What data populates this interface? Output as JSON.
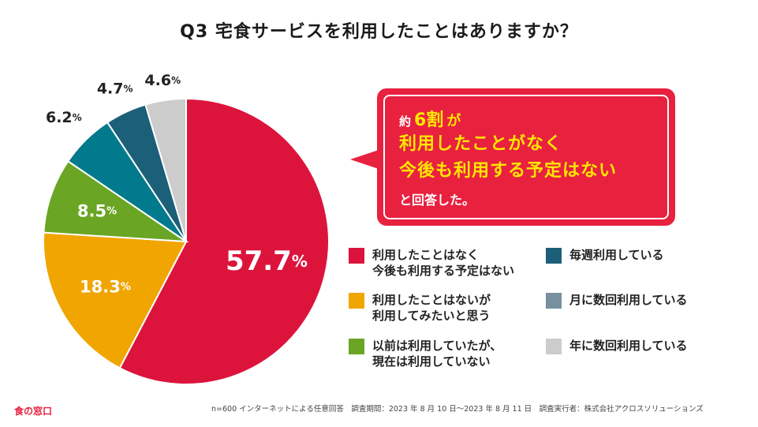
{
  "title": "Q3 宅食サービスを利用したことはありますか？",
  "chart_data": {
    "type": "pie",
    "unit": "%",
    "slices": [
      {
        "label": "利用したことはなく\n今後も利用する予定はない",
        "value": 57.7,
        "color": "#dc143c"
      },
      {
        "label": "利用したことはないが\n利用してみたいと思う",
        "value": 18.3,
        "color": "#f0a500"
      },
      {
        "label": "以前は利用していたが、\n現在は利用していない",
        "value": 8.5,
        "color": "#6aa523"
      },
      {
        "label": "毎週利用している",
        "value": 6.2,
        "color": "#007a8c"
      },
      {
        "label": "月に数回利用している",
        "value": 4.7,
        "color": "#1c5f78"
      },
      {
        "label": "年に数回利用している",
        "value": 4.6,
        "color": "#cccccc"
      }
    ],
    "legend_colors": {
      "monthly": "#76909e"
    }
  },
  "callout": {
    "prefix": "約",
    "big": "6割",
    "suffix": "が",
    "line2": "利用したことがなく",
    "line3": "今後も利用する予定はない",
    "line4": "と回答した。"
  },
  "legend": [
    {
      "label": "利用したことはなく\n今後も利用する予定はない",
      "color": "#dc143c"
    },
    {
      "label": "利用したことはないが\n利用してみたいと思う",
      "color": "#f0a500"
    },
    {
      "label": "以前は利用していたが、\n現在は利用していない",
      "color": "#6aa523"
    },
    {
      "label": "毎週利用している",
      "color": "#1c5f78"
    },
    {
      "label": "月に数回利用している",
      "color": "#76909e"
    },
    {
      "label": "年に数回利用している",
      "color": "#cccccc"
    }
  ],
  "logo": "食の窓口",
  "footer": "n=600 インターネットによる任意回答　調査期間：2023 年 8 月 10 日〜2023 年 8 月 11 日　調査実行者：株式会社アクロスソリューションズ"
}
